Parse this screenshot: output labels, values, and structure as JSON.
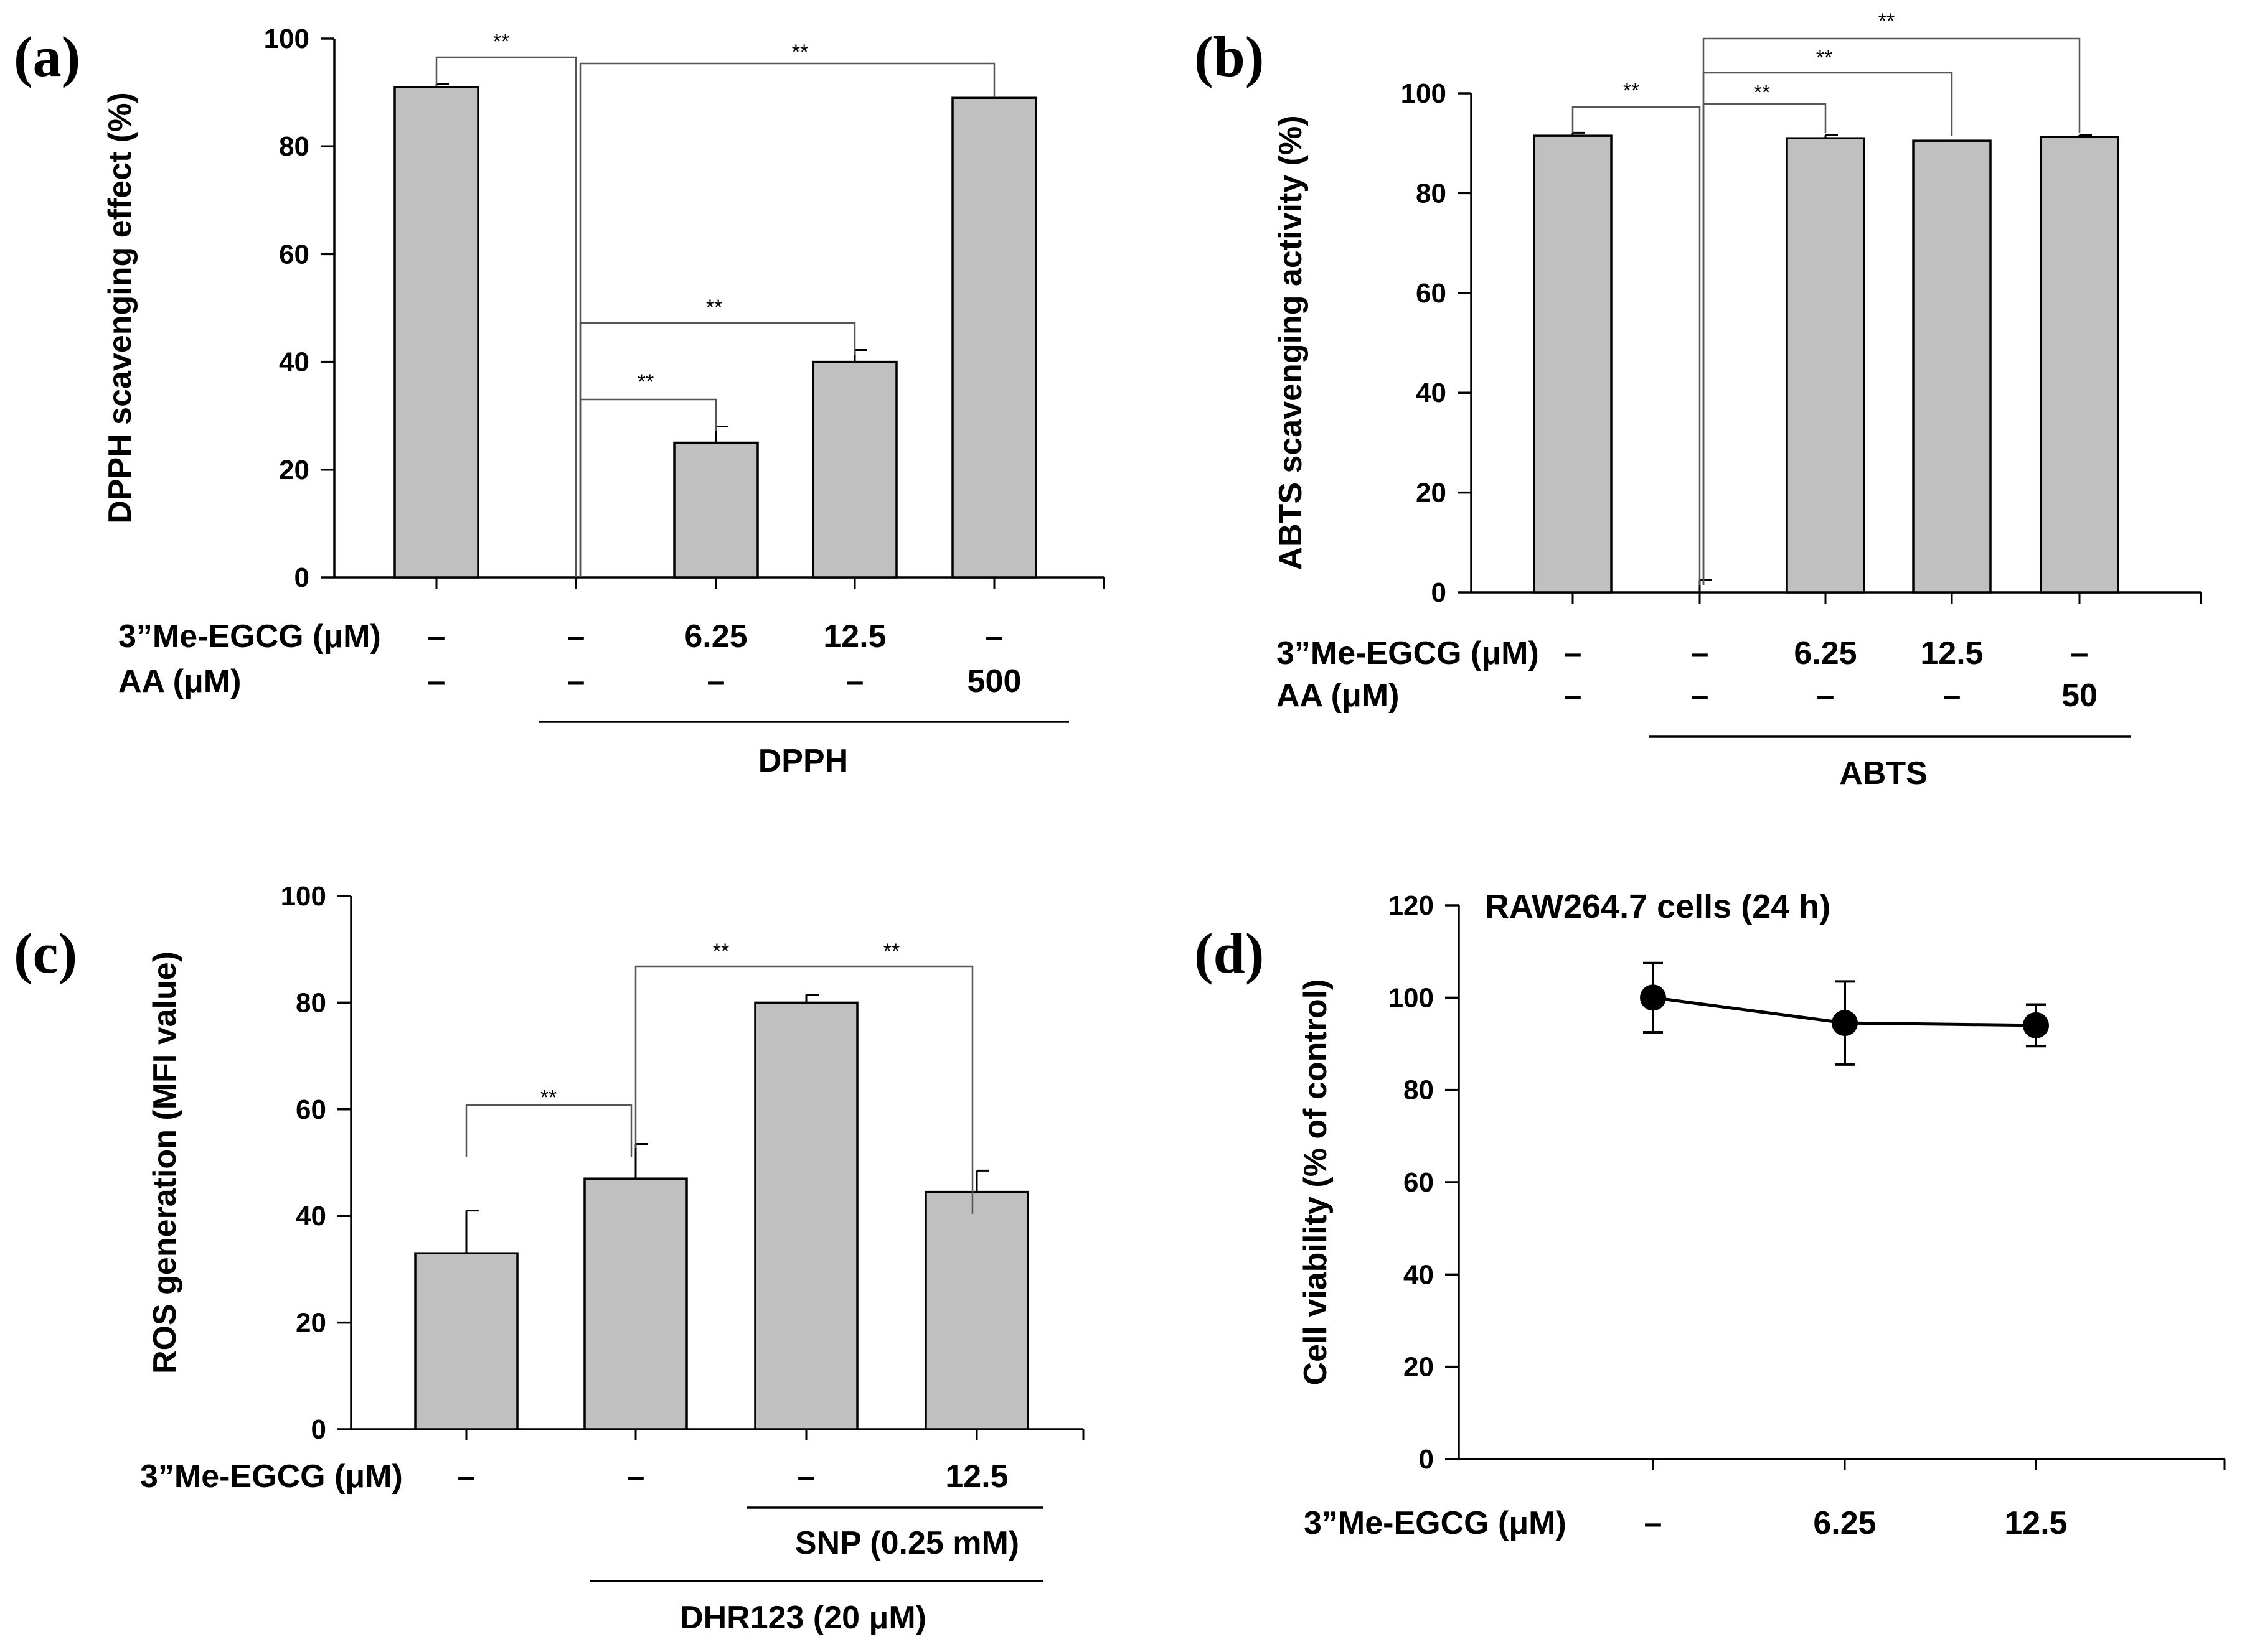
{
  "chart_data": [
    {
      "panel": "(a)",
      "type": "bar",
      "ylabel": "DPPH scavenging effect (%)",
      "ylim": [
        0,
        100
      ],
      "yticks": [
        "0",
        "20",
        "40",
        "60",
        "80",
        "100"
      ],
      "values": [
        91,
        0,
        25,
        40,
        89
      ],
      "errors": [
        0.6,
        0,
        3,
        2.2,
        0
      ],
      "condition_rows": [
        {
          "label": "3”Me-EGCG (μM)",
          "cells": [
            "–",
            "–",
            "6.25",
            "12.5",
            "–"
          ]
        },
        {
          "label": "AA (μM)",
          "cells": [
            "–",
            "–",
            "–",
            "–",
            "500"
          ]
        }
      ],
      "group_label": "DPPH",
      "significance": [
        {
          "from": 0,
          "to": 1,
          "text": "**"
        },
        {
          "from": 1,
          "to": 4,
          "text": "**"
        },
        {
          "from": 1,
          "to": 3,
          "text": "**"
        },
        {
          "from": 1,
          "to": 2,
          "text": "**"
        }
      ]
    },
    {
      "panel": "(b)",
      "type": "bar",
      "ylabel": "ABTS scavenging activity  (%)",
      "ylim": [
        0,
        100
      ],
      "yticks": [
        "0",
        "20",
        "40",
        "60",
        "80",
        "100"
      ],
      "values": [
        91.5,
        0,
        91,
        90.5,
        91.3
      ],
      "errors": [
        0.6,
        2.5,
        0.6,
        0,
        0.4
      ],
      "condition_rows": [
        {
          "label": "3”Me-EGCG (μM)",
          "cells": [
            "–",
            "–",
            "6.25",
            "12.5",
            "–"
          ]
        },
        {
          "label": "AA (μM)",
          "cells": [
            "–",
            "–",
            "–",
            "–",
            "50"
          ]
        }
      ],
      "group_label": "ABTS",
      "significance": [
        {
          "from": 0,
          "to": 1,
          "text": "**"
        },
        {
          "from": 1,
          "to": 4,
          "text": "**"
        },
        {
          "from": 1,
          "to": 3,
          "text": "**"
        },
        {
          "from": 1,
          "to": 2,
          "text": "**"
        }
      ]
    },
    {
      "panel": "(c)",
      "type": "bar",
      "ylabel": "ROS generation (MFI value)",
      "ylim": [
        0,
        100
      ],
      "yticks": [
        "0",
        "20",
        "40",
        "60",
        "80",
        "100"
      ],
      "values": [
        33,
        47,
        80,
        44.5
      ],
      "errors": [
        8,
        6.5,
        1.5,
        4
      ],
      "condition_rows": [
        {
          "label": "3”Me-EGCG (μM)",
          "cells": [
            "–",
            "–",
            "–",
            "12.5"
          ]
        }
      ],
      "group_labels": [
        {
          "text": "SNP (0.25 mM)",
          "from": 2,
          "to": 3
        },
        {
          "text": "DHR123 (20 μM)",
          "from": 1,
          "to": 3
        }
      ],
      "significance": [
        {
          "from": 0,
          "to": 1,
          "text": "**"
        },
        {
          "from": 1,
          "to": 2,
          "text": "**"
        },
        {
          "from": 2,
          "to": 3,
          "text": "**"
        }
      ]
    },
    {
      "panel": "(d)",
      "type": "line",
      "title": "RAW264.7 cells (24 h)",
      "ylabel": "Cell viability (% of control)",
      "ylim": [
        0,
        120
      ],
      "yticks": [
        "0",
        "20",
        "40",
        "60",
        "80",
        "100",
        "120"
      ],
      "x": [
        "–",
        "6.25",
        "12.5"
      ],
      "values": [
        100,
        94.5,
        94
      ],
      "errors": [
        7.5,
        9,
        4.5
      ],
      "condition_rows": [
        {
          "label": "3”Me-EGCG (μM)",
          "cells": [
            "–",
            "6.25",
            "12.5"
          ]
        }
      ]
    }
  ]
}
